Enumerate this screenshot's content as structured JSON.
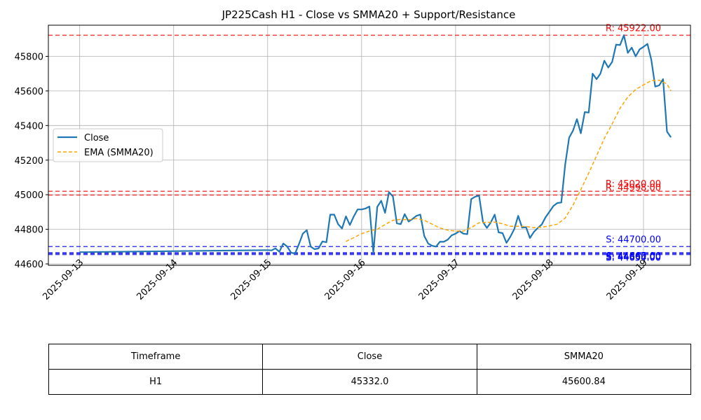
{
  "chart_data": {
    "type": "line",
    "title": "JP225Cash H1 - Close vs SMMA20 + Support/Resistance",
    "xlabel": "",
    "ylabel": "",
    "x_ticks": [
      "2025-09-13",
      "2025-09-14",
      "2025-09-15",
      "2025-09-16",
      "2025-09-17",
      "2025-09-18",
      "2025-09-19"
    ],
    "y_ticks": [
      44600,
      44800,
      45000,
      45200,
      45400,
      45600,
      45800
    ],
    "xlim": [
      "2025-09-12 16:00",
      "2025-09-19 12:00"
    ],
    "ylim": [
      44592,
      45980
    ],
    "grid": true,
    "legend_position": "center-left",
    "series": [
      {
        "name": "Close",
        "color": "#1f77b4",
        "style": "solid",
        "points": [
          [
            "2025-09-13 00:00",
            44668
          ],
          [
            "2025-09-15 00:00",
            44680
          ],
          [
            "2025-09-15 01:00",
            44678
          ],
          [
            "2025-09-15 02:00",
            44690
          ],
          [
            "2025-09-15 03:00",
            44670
          ],
          [
            "2025-09-15 04:00",
            44718
          ],
          [
            "2025-09-15 05:00",
            44700
          ],
          [
            "2025-09-15 06:00",
            44665
          ],
          [
            "2025-09-15 07:00",
            44660
          ],
          [
            "2025-09-15 08:00",
            44715
          ],
          [
            "2025-09-15 09:00",
            44775
          ],
          [
            "2025-09-15 10:00",
            44795
          ],
          [
            "2025-09-15 11:00",
            44700
          ],
          [
            "2025-09-15 12:00",
            44685
          ],
          [
            "2025-09-15 13:00",
            44690
          ],
          [
            "2025-09-15 14:00",
            44730
          ],
          [
            "2025-09-15 15:00",
            44725
          ],
          [
            "2025-09-15 16:00",
            44885
          ],
          [
            "2025-09-15 17:00",
            44885
          ],
          [
            "2025-09-15 18:00",
            44830
          ],
          [
            "2025-09-15 19:00",
            44805
          ],
          [
            "2025-09-15 20:00",
            44875
          ],
          [
            "2025-09-15 21:00",
            44825
          ],
          [
            "2025-09-15 22:00",
            44875
          ],
          [
            "2025-09-15 23:00",
            44915
          ],
          [
            "2025-09-16 00:00",
            44915
          ],
          [
            "2025-09-16 01:00",
            44920
          ],
          [
            "2025-09-16 02:00",
            44932
          ],
          [
            "2025-09-16 03:00",
            44665
          ],
          [
            "2025-09-16 04:00",
            44930
          ],
          [
            "2025-09-16 05:00",
            44965
          ],
          [
            "2025-09-16 06:00",
            44895
          ],
          [
            "2025-09-16 07:00",
            45015
          ],
          [
            "2025-09-16 08:00",
            44990
          ],
          [
            "2025-09-16 09:00",
            44835
          ],
          [
            "2025-09-16 10:00",
            44830
          ],
          [
            "2025-09-16 11:00",
            44888
          ],
          [
            "2025-09-16 12:00",
            44845
          ],
          [
            "2025-09-16 13:00",
            44860
          ],
          [
            "2025-09-16 14:00",
            44878
          ],
          [
            "2025-09-16 15:00",
            44885
          ],
          [
            "2025-09-16 16:00",
            44762
          ],
          [
            "2025-09-16 17:00",
            44718
          ],
          [
            "2025-09-16 18:00",
            44705
          ],
          [
            "2025-09-16 19:00",
            44700
          ],
          [
            "2025-09-16 20:00",
            44728
          ],
          [
            "2025-09-16 21:00",
            44728
          ],
          [
            "2025-09-16 22:00",
            44740
          ],
          [
            "2025-09-16 23:00",
            44765
          ],
          [
            "2025-09-17 00:00",
            44775
          ],
          [
            "2025-09-17 01:00",
            44790
          ],
          [
            "2025-09-17 02:00",
            44775
          ],
          [
            "2025-09-17 03:00",
            44772
          ],
          [
            "2025-09-17 04:00",
            44975
          ],
          [
            "2025-09-17 05:00",
            44988
          ],
          [
            "2025-09-17 06:00",
            44995
          ],
          [
            "2025-09-17 07:00",
            44842
          ],
          [
            "2025-09-17 08:00",
            44808
          ],
          [
            "2025-09-17 09:00",
            44840
          ],
          [
            "2025-09-17 10:00",
            44885
          ],
          [
            "2025-09-17 11:00",
            44782
          ],
          [
            "2025-09-17 12:00",
            44778
          ],
          [
            "2025-09-17 13:00",
            44722
          ],
          [
            "2025-09-17 14:00",
            44758
          ],
          [
            "2025-09-17 15:00",
            44802
          ],
          [
            "2025-09-17 16:00",
            44878
          ],
          [
            "2025-09-17 17:00",
            44810
          ],
          [
            "2025-09-17 18:00",
            44812
          ],
          [
            "2025-09-17 19:00",
            44750
          ],
          [
            "2025-09-17 20:00",
            44785
          ],
          [
            "2025-09-17 21:00",
            44808
          ],
          [
            "2025-09-17 22:00",
            44828
          ],
          [
            "2025-09-17 23:00",
            44870
          ],
          [
            "2025-09-18 00:00",
            44902
          ],
          [
            "2025-09-18 01:00",
            44935
          ],
          [
            "2025-09-18 02:00",
            44952
          ],
          [
            "2025-09-18 03:00",
            44955
          ],
          [
            "2025-09-18 04:00",
            45175
          ],
          [
            "2025-09-18 05:00",
            45330
          ],
          [
            "2025-09-18 06:00",
            45370
          ],
          [
            "2025-09-18 07:00",
            45437
          ],
          [
            "2025-09-18 08:00",
            45355
          ],
          [
            "2025-09-18 09:00",
            45478
          ],
          [
            "2025-09-18 10:00",
            45475
          ],
          [
            "2025-09-18 11:00",
            45700
          ],
          [
            "2025-09-18 12:00",
            45668
          ],
          [
            "2025-09-18 13:00",
            45700
          ],
          [
            "2025-09-18 14:00",
            45775
          ],
          [
            "2025-09-18 15:00",
            45735
          ],
          [
            "2025-09-18 16:00",
            45768
          ],
          [
            "2025-09-18 17:00",
            45868
          ],
          [
            "2025-09-18 18:00",
            45865
          ],
          [
            "2025-09-18 19:00",
            45922
          ],
          [
            "2025-09-18 20:00",
            45820
          ],
          [
            "2025-09-18 21:00",
            45850
          ],
          [
            "2025-09-18 22:00",
            45800
          ],
          [
            "2025-09-18 23:00",
            45840
          ],
          [
            "2025-09-19 00:00",
            45855
          ],
          [
            "2025-09-19 01:00",
            45872
          ],
          [
            "2025-09-19 02:00",
            45780
          ],
          [
            "2025-09-19 03:00",
            45625
          ],
          [
            "2025-09-19 04:00",
            45632
          ],
          [
            "2025-09-19 05:00",
            45668
          ],
          [
            "2025-09-19 06:00",
            45365
          ],
          [
            "2025-09-19 07:00",
            45332
          ]
        ]
      },
      {
        "name": "EMA (SMMA20)",
        "color": "#ffa500",
        "style": "dashed",
        "points": [
          [
            "2025-09-15 20:00",
            44730
          ],
          [
            "2025-09-15 22:00",
            44752
          ],
          [
            "2025-09-16 00:00",
            44775
          ],
          [
            "2025-09-16 02:00",
            44790
          ],
          [
            "2025-09-16 04:00",
            44800
          ],
          [
            "2025-09-16 06:00",
            44828
          ],
          [
            "2025-09-16 08:00",
            44852
          ],
          [
            "2025-09-16 10:00",
            44858
          ],
          [
            "2025-09-16 12:00",
            44855
          ],
          [
            "2025-09-16 14:00",
            44862
          ],
          [
            "2025-09-16 16:00",
            44852
          ],
          [
            "2025-09-16 18:00",
            44830
          ],
          [
            "2025-09-16 20:00",
            44808
          ],
          [
            "2025-09-16 22:00",
            44795
          ],
          [
            "2025-09-17 00:00",
            44790
          ],
          [
            "2025-09-17 02:00",
            44790
          ],
          [
            "2025-09-17 04:00",
            44810
          ],
          [
            "2025-09-17 06:00",
            44838
          ],
          [
            "2025-09-17 08:00",
            44840
          ],
          [
            "2025-09-17 10:00",
            44842
          ],
          [
            "2025-09-17 12:00",
            44832
          ],
          [
            "2025-09-17 14:00",
            44818
          ],
          [
            "2025-09-17 16:00",
            44818
          ],
          [
            "2025-09-17 18:00",
            44816
          ],
          [
            "2025-09-17 20:00",
            44810
          ],
          [
            "2025-09-17 22:00",
            44812
          ],
          [
            "2025-09-18 00:00",
            44820
          ],
          [
            "2025-09-18 02:00",
            44830
          ],
          [
            "2025-09-18 04:00",
            44865
          ],
          [
            "2025-09-18 06:00",
            44940
          ],
          [
            "2025-09-18 08:00",
            45030
          ],
          [
            "2025-09-18 10:00",
            45125
          ],
          [
            "2025-09-18 12:00",
            45225
          ],
          [
            "2025-09-18 14:00",
            45325
          ],
          [
            "2025-09-18 16:00",
            45410
          ],
          [
            "2025-09-18 18:00",
            45500
          ],
          [
            "2025-09-18 20:00",
            45565
          ],
          [
            "2025-09-18 22:00",
            45608
          ],
          [
            "2025-09-19 00:00",
            45635
          ],
          [
            "2025-09-19 02:00",
            45660
          ],
          [
            "2025-09-19 04:00",
            45662
          ],
          [
            "2025-09-19 06:00",
            45640
          ],
          [
            "2025-09-19 07:00",
            45600
          ]
        ]
      }
    ],
    "levels": [
      {
        "kind": "resistance",
        "value": 45922,
        "label": "R: 45922.00",
        "color": "#ff0000",
        "label_offset": -6
      },
      {
        "kind": "resistance",
        "value": 45020,
        "label": "R: 45020.00",
        "color": "#ff0000",
        "label_offset": -6
      },
      {
        "kind": "resistance",
        "value": 44998,
        "label": "R: 44998.00",
        "color": "#ff0000",
        "label_offset": -6
      },
      {
        "kind": "support",
        "value": 44700,
        "label": "S: 44700.00",
        "color": "#0000ff",
        "label_offset": -6
      },
      {
        "kind": "support",
        "value": 44665,
        "label": "S: 44665.00",
        "color": "#0000ff",
        "label_offset": 9
      },
      {
        "kind": "support",
        "value": 44660,
        "label": "S: 44660.00",
        "color": "#0000ff",
        "label_offset": 9
      },
      {
        "kind": "support",
        "value": 44654,
        "label": "S: 44654.00",
        "color": "#0000ff",
        "label_offset": 9
      }
    ]
  },
  "table": {
    "headers": [
      "Timeframe",
      "Close",
      "SMMA20"
    ],
    "row": [
      "H1",
      "45332.0",
      "45600.84"
    ]
  }
}
